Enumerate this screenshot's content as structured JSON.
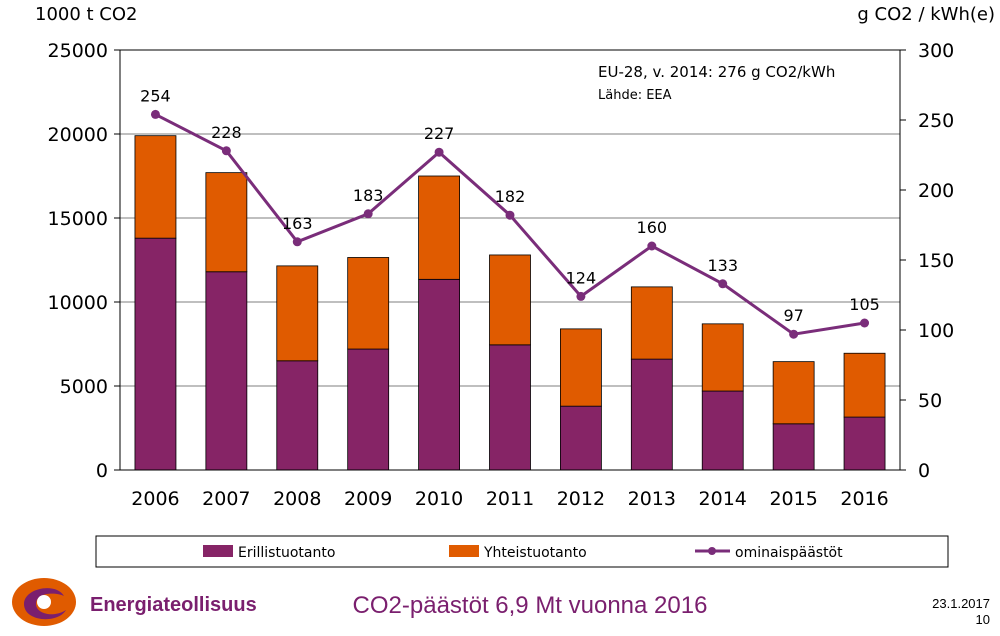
{
  "chart_data": {
    "type": "bar",
    "stacked": true,
    "categories": [
      "2006",
      "2007",
      "2008",
      "2009",
      "2010",
      "2011",
      "2012",
      "2013",
      "2014",
      "2015",
      "2016"
    ],
    "series": [
      {
        "name": "Erillistuotanto",
        "axis": "left",
        "color": "#862466",
        "values": [
          13800,
          11800,
          6500,
          7200,
          11350,
          7450,
          3800,
          6600,
          4700,
          2750,
          3150
        ]
      },
      {
        "name": "Yhteistuotanto",
        "axis": "left",
        "color": "#e05b00",
        "values": [
          6100,
          5900,
          5650,
          5450,
          6150,
          5350,
          4600,
          4300,
          4000,
          3700,
          3800
        ]
      },
      {
        "name": "ominaispäästöt",
        "type": "line",
        "axis": "right",
        "color": "#7a2d7a",
        "values": [
          254,
          228,
          163,
          183,
          227,
          182,
          124,
          160,
          133,
          97,
          105
        ]
      }
    ],
    "left_axis": {
      "label": "1000 t CO2",
      "ticks": [
        "0",
        "5000",
        "10000",
        "15000",
        "20000",
        "25000"
      ],
      "range": [
        0,
        25000
      ]
    },
    "right_axis": {
      "label": "g CO2 / kWh(e)",
      "ticks": [
        "0",
        "50",
        "100",
        "150",
        "200",
        "250",
        "300"
      ],
      "range": [
        0,
        300
      ]
    },
    "annotation": "EU-28, v. 2014: 276 g CO2/kWh",
    "source": "Lähde: EEA",
    "grid": true,
    "legend_position": "bottom"
  },
  "footer": {
    "title": "CO2-päästöt 6,9 Mt vuonna 2016",
    "date": "23.1.2017",
    "page": "10",
    "logo_text": "Energiateollisuus"
  }
}
